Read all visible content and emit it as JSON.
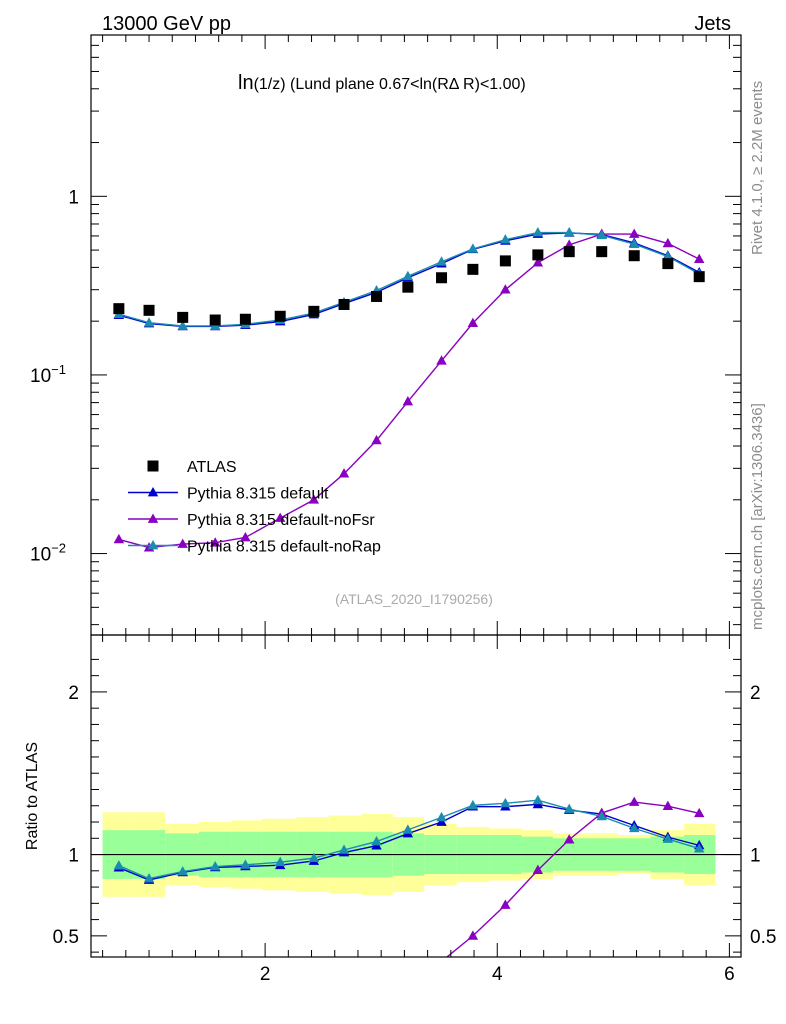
{
  "header": {
    "left_title": "13000 GeV pp",
    "right_title": "Jets",
    "plot_title_prefix": "ln",
    "plot_title_var": "(1/z)",
    "plot_title_rest": " (Lund plane 0.67<ln(RΔ R)<1.00)",
    "rivet_label": "Rivet 4.1.0, ≥ 2.2M events",
    "mcplots_label": "mcplots.cern.ch [arXiv:1306.3436]",
    "analysis_label": "(ATLAS_2020_I1790256)"
  },
  "ratio_ylabel": "Ratio to ATLAS",
  "legend": [
    {
      "label": "ATLAS",
      "marker": "square",
      "color": "#000000"
    },
    {
      "label": "Pythia 8.315 default",
      "marker": "triangle",
      "color": "#0000cd"
    },
    {
      "label": "Pythia 8.315 default-noFsr",
      "marker": "triangle",
      "color": "#8a00c0"
    },
    {
      "label": "Pythia 8.315 default-noRap",
      "marker": "triangle",
      "color": "#1a8cb0"
    }
  ],
  "chart_data": {
    "type": "line",
    "xlim": [
      0.5,
      6.1
    ],
    "main_ylim": [
      0.0035,
      8
    ],
    "main_yscale": "log",
    "ratio_ylim": [
      0.37,
      2.35
    ],
    "x_ticks": [
      2,
      4,
      6
    ],
    "x_tick_labels": [
      "2",
      "4",
      "6"
    ],
    "main_y_ticks": [
      {
        "value": 1,
        "base": "1",
        "exp": ""
      },
      {
        "value": 0.1,
        "base": "10",
        "exp": "−1"
      },
      {
        "value": 0.01,
        "base": "10",
        "exp": "−2"
      }
    ],
    "ratio_y_ticks": [
      {
        "value": 2,
        "label": "2"
      },
      {
        "value": 1,
        "label": "1"
      },
      {
        "value": 0.5,
        "label": "0.5"
      }
    ],
    "x": [
      0.74,
      1.0,
      1.29,
      1.57,
      1.83,
      2.13,
      2.42,
      2.68,
      2.96,
      3.23,
      3.52,
      3.79,
      4.07,
      4.35,
      4.62,
      4.9,
      5.18,
      5.47,
      5.74
    ],
    "x_edges": [
      0.6,
      0.87,
      1.14,
      1.43,
      1.71,
      1.97,
      2.27,
      2.55,
      2.83,
      3.1,
      3.37,
      3.65,
      3.93,
      4.21,
      4.48,
      4.76,
      5.04,
      5.32,
      5.61,
      5.88
    ],
    "atlas": [
      0.235,
      0.23,
      0.21,
      0.203,
      0.205,
      0.213,
      0.227,
      0.248,
      0.275,
      0.31,
      0.35,
      0.39,
      0.435,
      0.47,
      0.49,
      0.49,
      0.465,
      0.42,
      0.355
    ],
    "band_green": [
      0.15,
      0.15,
      0.13,
      0.14,
      0.14,
      0.14,
      0.14,
      0.14,
      0.14,
      0.13,
      0.12,
      0.12,
      0.12,
      0.11,
      0.1,
      0.1,
      0.1,
      0.11,
      0.12
    ],
    "band_yellow": [
      0.26,
      0.26,
      0.19,
      0.2,
      0.21,
      0.22,
      0.23,
      0.24,
      0.25,
      0.23,
      0.19,
      0.17,
      0.16,
      0.15,
      0.13,
      0.13,
      0.12,
      0.15,
      0.19
    ],
    "series": [
      {
        "name": "Pythia 8.315 default",
        "color": "#0000cd",
        "values": [
          0.216,
          0.194,
          0.187,
          0.187,
          0.19,
          0.199,
          0.218,
          0.251,
          0.29,
          0.35,
          0.42,
          0.505,
          0.563,
          0.615,
          0.624,
          0.612,
          0.548,
          0.465,
          0.375
        ]
      },
      {
        "name": "Pythia 8.315 default-noFsr",
        "color": "#8a00c0",
        "values": [
          0.012,
          0.0108,
          0.0113,
          0.0115,
          0.0123,
          0.0158,
          0.02,
          0.028,
          0.043,
          0.071,
          0.12,
          0.195,
          0.3,
          0.425,
          0.535,
          0.615,
          0.615,
          0.545,
          0.445
        ]
      },
      {
        "name": "Pythia 8.315 default-noRap",
        "color": "#1a8cb0",
        "values": [
          0.219,
          0.196,
          0.188,
          0.188,
          0.192,
          0.203,
          0.222,
          0.255,
          0.297,
          0.357,
          0.43,
          0.508,
          0.572,
          0.627,
          0.627,
          0.605,
          0.54,
          0.46,
          0.368
        ]
      }
    ]
  }
}
